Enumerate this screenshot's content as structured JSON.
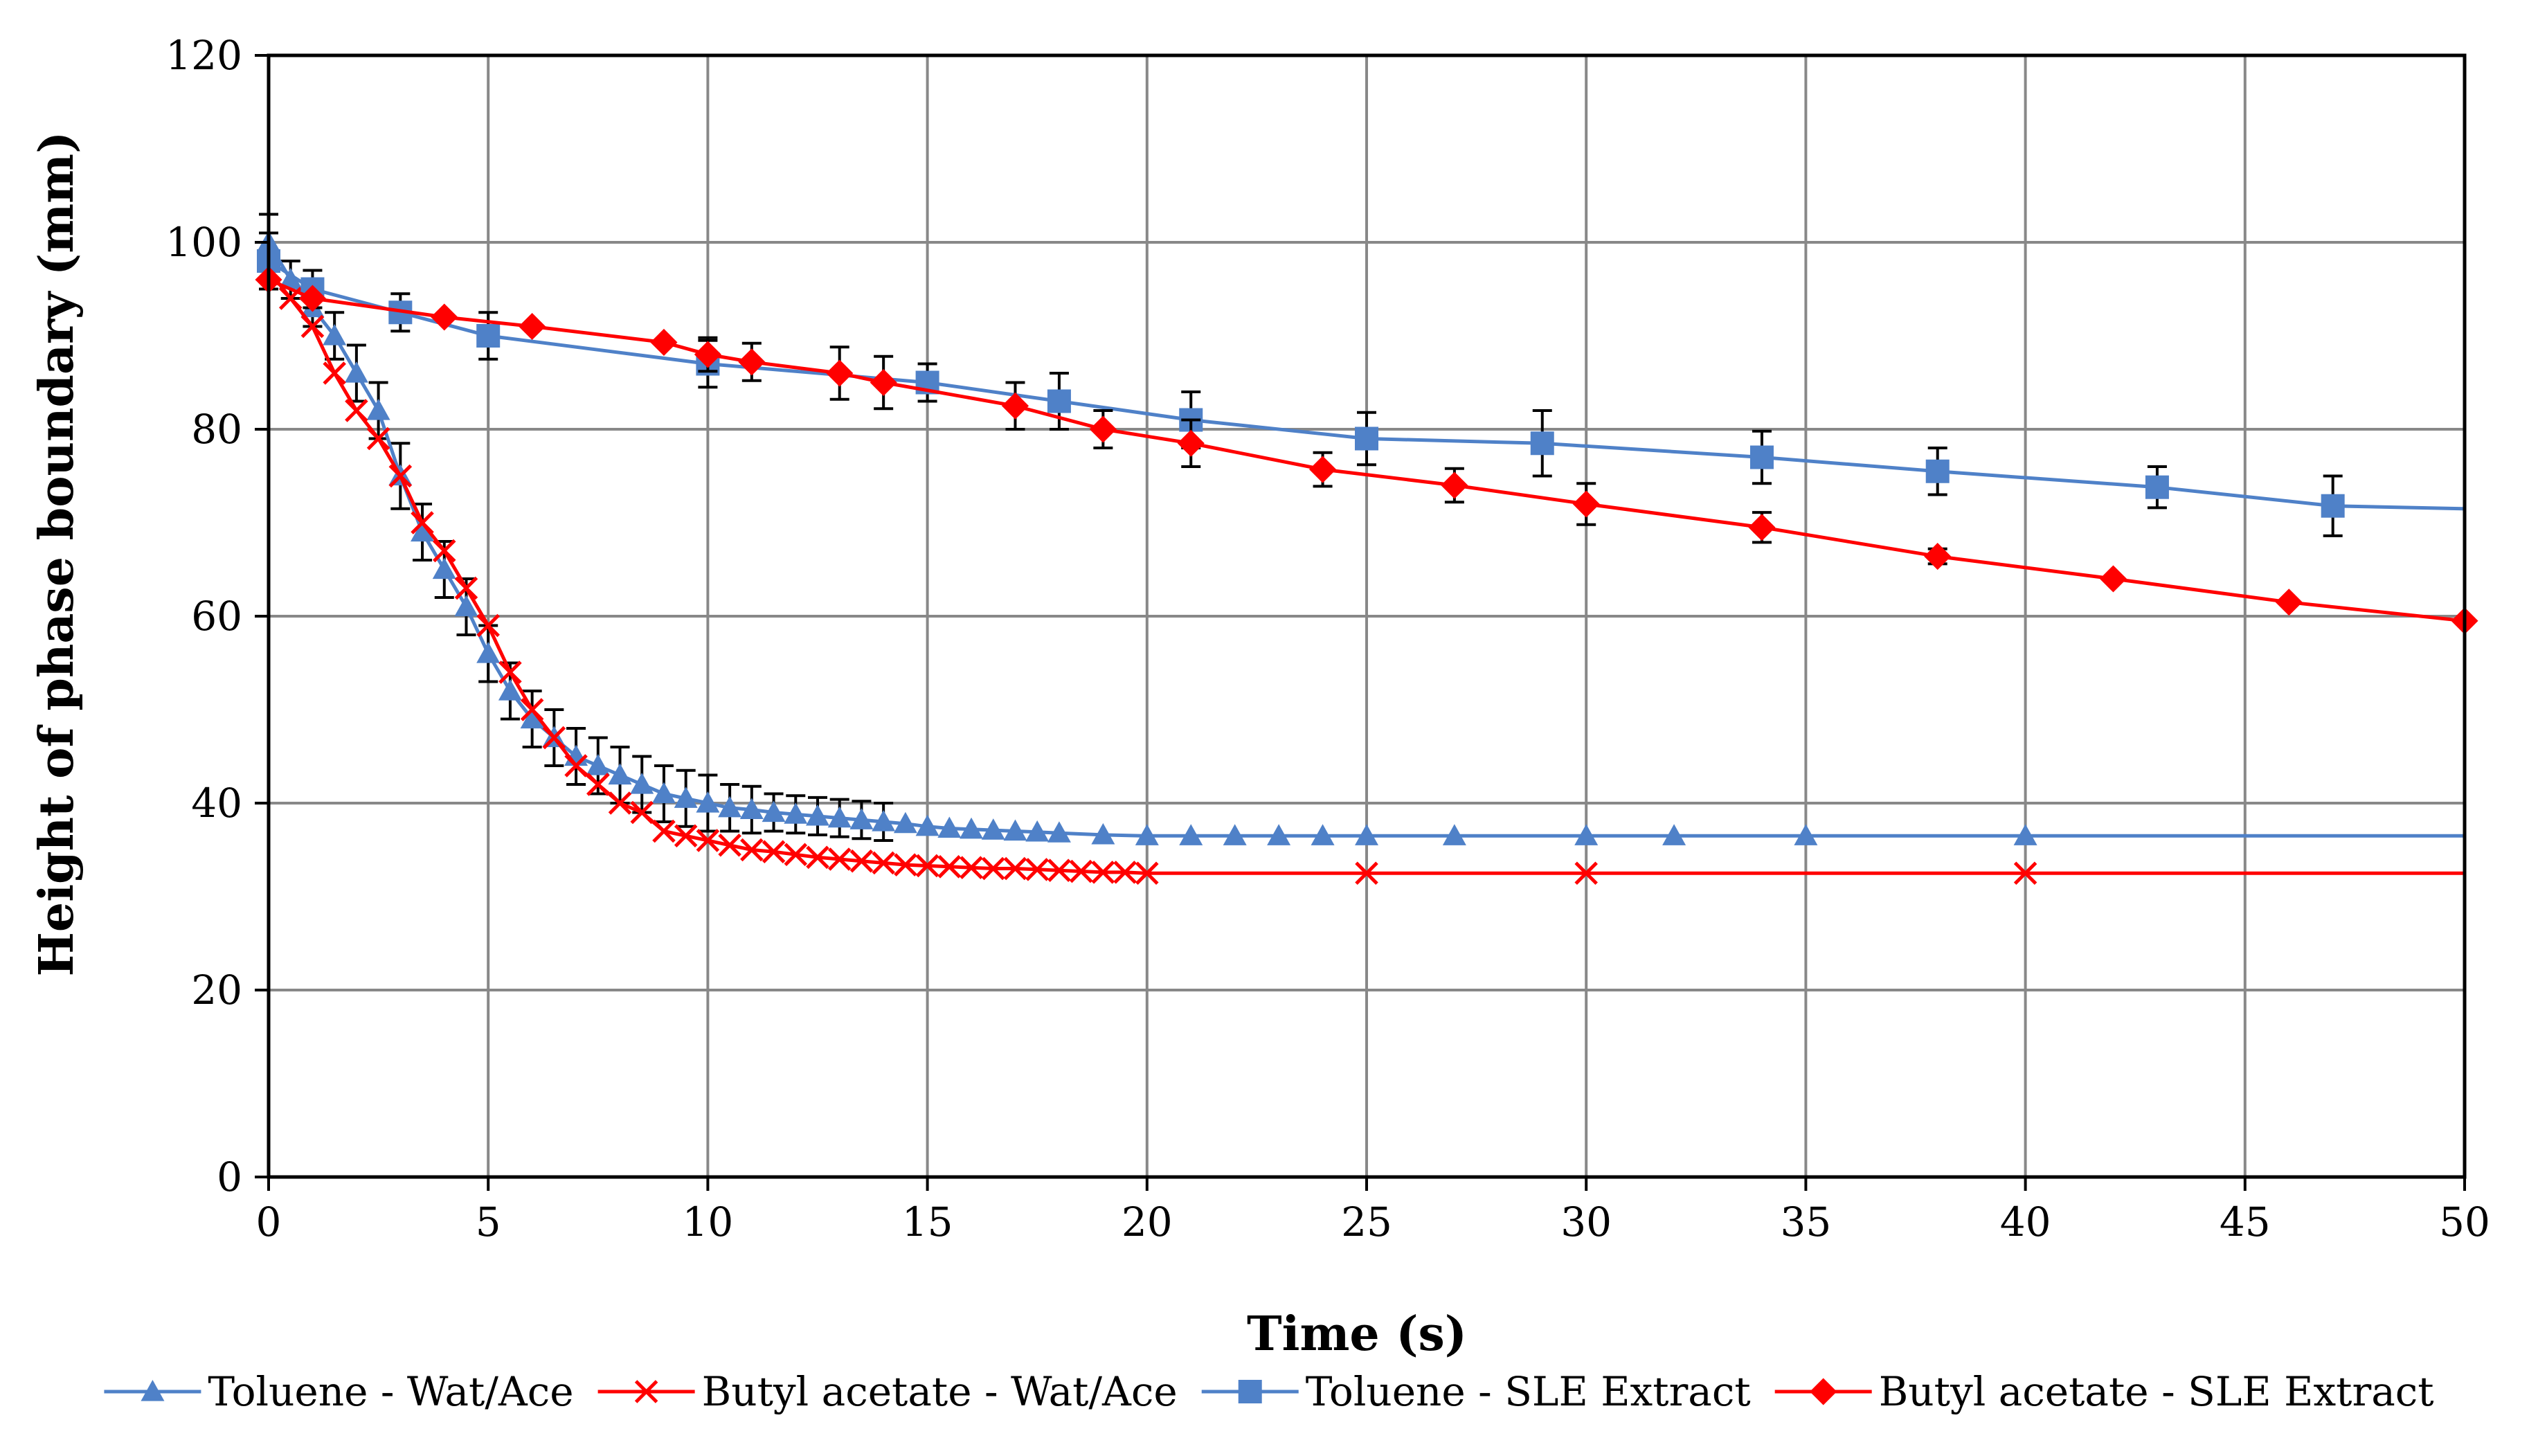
{
  "chart_data": {
    "type": "line",
    "xlabel": "Time (s)",
    "ylabel": "Height of phase boundary (mm)",
    "xlim": [
      0,
      50
    ],
    "ylim": [
      0,
      120
    ],
    "xticks": [
      0,
      5,
      10,
      15,
      20,
      25,
      30,
      35,
      40,
      45,
      50
    ],
    "yticks": [
      0,
      20,
      40,
      60,
      80,
      100,
      120
    ],
    "grid": true,
    "legend_position": "bottom",
    "series": [
      {
        "name": "Toluene - Wat/Ace",
        "color": "#4f81c8",
        "marker": "triangle",
        "x": [
          0,
          0.5,
          1,
          1.5,
          2,
          2.5,
          3,
          3.5,
          4,
          4.5,
          5,
          5.5,
          6,
          6.5,
          7,
          7.5,
          8,
          8.5,
          9,
          9.5,
          10,
          10.5,
          11,
          11.5,
          12,
          12.5,
          13,
          13.5,
          14,
          14.5,
          15,
          15.5,
          16,
          16.5,
          17,
          17.5,
          18,
          19,
          20,
          21,
          22,
          23,
          24,
          25,
          27,
          30,
          32,
          35,
          40
        ],
        "y": [
          100,
          96,
          93,
          90,
          86,
          82,
          75,
          69,
          65,
          61,
          56,
          52,
          49,
          47,
          45,
          44,
          43,
          42,
          41,
          40.5,
          40,
          39.5,
          39.3,
          39,
          38.8,
          38.6,
          38.4,
          38.2,
          38,
          37.8,
          37.5,
          37.3,
          37.2,
          37.1,
          37,
          36.9,
          36.8,
          36.6,
          36.5,
          36.5,
          36.5,
          36.5,
          36.5,
          36.5,
          36.5,
          36.5,
          36.5,
          36.5,
          36.5
        ],
        "err": [
          3,
          2,
          2,
          2.5,
          3,
          3,
          3.5,
          3,
          3,
          3,
          3,
          3,
          3,
          3,
          3,
          3,
          3,
          3,
          3,
          3,
          3,
          2.5,
          2.5,
          2,
          2,
          2,
          2,
          2,
          2,
          0,
          0,
          0,
          0,
          0,
          0,
          0,
          0,
          0,
          0,
          0,
          0,
          0,
          0,
          0,
          0,
          0,
          0,
          0,
          0
        ]
      },
      {
        "name": "Butyl acetate - Wat/Ace",
        "color": "#ff0000",
        "marker": "x",
        "x": [
          0,
          0.5,
          1,
          1.5,
          2,
          2.5,
          3,
          3.5,
          4,
          4.5,
          5,
          5.5,
          6,
          6.5,
          7,
          7.5,
          8,
          8.5,
          9,
          9.5,
          10,
          10.5,
          11,
          11.5,
          12,
          12.5,
          13,
          13.5,
          14,
          14.5,
          15,
          15.5,
          16,
          16.5,
          17,
          17.5,
          18,
          18.5,
          19,
          19.5,
          20,
          25,
          30,
          40
        ],
        "y": [
          97,
          94,
          91,
          86,
          82,
          79,
          75,
          70,
          67,
          63,
          59,
          54,
          50,
          47,
          44,
          42,
          40,
          39,
          37,
          36.5,
          36,
          35.5,
          35,
          34.8,
          34.5,
          34.2,
          34,
          33.8,
          33.6,
          33.4,
          33.3,
          33.2,
          33.1,
          33,
          33,
          32.9,
          32.8,
          32.7,
          32.6,
          32.6,
          32.5,
          32.5,
          32.5,
          32.5
        ],
        "err": [
          0,
          0,
          0,
          0,
          0,
          0,
          0,
          0,
          0,
          0,
          0,
          0,
          0,
          0,
          0,
          0,
          0,
          0,
          0,
          0,
          0,
          0,
          0,
          0,
          0,
          0,
          0,
          0,
          0,
          0,
          0,
          0,
          0,
          0,
          0,
          0,
          0,
          0,
          0,
          0,
          0,
          0,
          0,
          0
        ]
      },
      {
        "name": "Toluene - SLE Extract",
        "color": "#4f81c8",
        "marker": "square",
        "x": [
          0,
          1,
          3,
          5,
          10,
          15,
          18,
          21,
          25,
          29,
          34,
          38,
          43,
          47
        ],
        "y": [
          98,
          95,
          92.5,
          90,
          87,
          85,
          83,
          81,
          79,
          78.5,
          77,
          75.5,
          73.8,
          71.8
        ],
        "err": [
          3,
          2,
          2,
          2.5,
          2.5,
          2,
          3,
          3,
          2.8,
          3.5,
          2.8,
          2.5,
          2.2,
          3.2
        ]
      },
      {
        "name": "Butyl acetate - SLE Extract",
        "color": "#ff0000",
        "marker": "diamond",
        "x": [
          0,
          1,
          4,
          6,
          9,
          10,
          11,
          13,
          14,
          17,
          19,
          21,
          24,
          27,
          30,
          34,
          38,
          42,
          46,
          50
        ],
        "y": [
          96,
          94,
          92,
          91,
          89.3,
          88,
          87.2,
          86,
          85,
          82.5,
          80,
          78.5,
          75.7,
          74,
          72,
          69.5,
          66.4,
          64,
          61.5,
          59.5
        ],
        "err": [
          0,
          0,
          0,
          0,
          0,
          1.8,
          2,
          2.8,
          2.8,
          2.5,
          2,
          2.5,
          1.8,
          1.8,
          2.2,
          1.6,
          0.8,
          0,
          0,
          0
        ]
      }
    ]
  }
}
